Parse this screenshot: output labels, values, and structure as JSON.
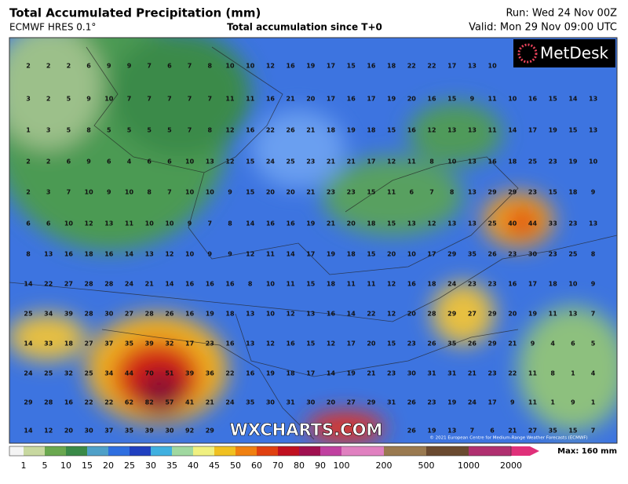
{
  "header": {
    "title": "Total Accumulated Precipitation (mm)",
    "model": "ECMWF HRES 0.1°",
    "subtitle": "Total accumulation since T+0",
    "run": "Run: Wed 24 Nov 00Z",
    "valid": "Valid: Mon 29 Nov 09:00 UTC"
  },
  "logo": "MetDesk",
  "watermark": "WXCHARTS.COM",
  "copyright": "© 2021 European Centre for Medium-Range Weather Forecasts (ECMWF)",
  "grid": [
    [
      2,
      2,
      2,
      6,
      9,
      9,
      7,
      6,
      7,
      8,
      10,
      10,
      12,
      16,
      19,
      17,
      15,
      16,
      18,
      22,
      22,
      17,
      13,
      10,
      null,
      null,
      null,
      null,
      null
    ],
    [
      3,
      2,
      5,
      9,
      10,
      7,
      7,
      7,
      7,
      7,
      11,
      11,
      16,
      21,
      20,
      17,
      16,
      17,
      19,
      20,
      16,
      15,
      9,
      11,
      10,
      16,
      15,
      14,
      13
    ],
    [
      1,
      3,
      5,
      8,
      5,
      5,
      5,
      5,
      7,
      8,
      12,
      16,
      22,
      26,
      21,
      18,
      19,
      18,
      15,
      16,
      12,
      13,
      13,
      11,
      14,
      17,
      19,
      15,
      13
    ],
    [
      2,
      2,
      6,
      9,
      6,
      4,
      6,
      6,
      10,
      13,
      12,
      15,
      24,
      25,
      23,
      21,
      21,
      17,
      12,
      11,
      8,
      10,
      13,
      16,
      18,
      25,
      23,
      19,
      10
    ],
    [
      2,
      3,
      7,
      10,
      9,
      10,
      8,
      7,
      10,
      10,
      9,
      15,
      20,
      20,
      21,
      23,
      23,
      15,
      11,
      6,
      7,
      8,
      13,
      29,
      29,
      23,
      15,
      18,
      9
    ],
    [
      6,
      6,
      10,
      12,
      13,
      11,
      10,
      10,
      9,
      7,
      8,
      14,
      16,
      16,
      19,
      21,
      20,
      18,
      15,
      13,
      12,
      13,
      13,
      25,
      40,
      44,
      33,
      23,
      13
    ],
    [
      8,
      13,
      16,
      18,
      16,
      14,
      13,
      12,
      10,
      9,
      9,
      12,
      11,
      14,
      17,
      19,
      18,
      15,
      20,
      10,
      17,
      29,
      35,
      26,
      23,
      30,
      23,
      25,
      8
    ],
    [
      14,
      22,
      27,
      28,
      28,
      24,
      21,
      14,
      16,
      16,
      16,
      8,
      10,
      11,
      15,
      18,
      11,
      11,
      12,
      16,
      18,
      24,
      23,
      23,
      16,
      17,
      18,
      10,
      9
    ],
    [
      25,
      34,
      39,
      28,
      30,
      27,
      28,
      26,
      16,
      19,
      18,
      13,
      10,
      12,
      13,
      16,
      14,
      22,
      12,
      20,
      28,
      29,
      27,
      29,
      20,
      19,
      11,
      13,
      7
    ],
    [
      14,
      33,
      18,
      27,
      37,
      35,
      39,
      32,
      17,
      23,
      16,
      13,
      12,
      16,
      15,
      12,
      17,
      20,
      15,
      23,
      26,
      35,
      26,
      29,
      21,
      9,
      4,
      6,
      5
    ],
    [
      24,
      25,
      32,
      25,
      34,
      44,
      70,
      51,
      39,
      36,
      22,
      16,
      19,
      18,
      17,
      14,
      19,
      21,
      23,
      30,
      31,
      31,
      21,
      23,
      22,
      11,
      8,
      1,
      4
    ],
    [
      29,
      28,
      16,
      22,
      22,
      62,
      82,
      57,
      41,
      21,
      24,
      35,
      30,
      31,
      30,
      20,
      27,
      29,
      31,
      26,
      23,
      19,
      24,
      17,
      9,
      11,
      1,
      9,
      1
    ],
    [
      14,
      12,
      20,
      30,
      37,
      35,
      39,
      30,
      92,
      29,
      null,
      null,
      null,
      null,
      null,
      null,
      null,
      null,
      null,
      26,
      19,
      13,
      7,
      6,
      21,
      27,
      35,
      15,
      7
    ]
  ],
  "legend": {
    "ticks": [
      "1",
      "5",
      "10",
      "15",
      "20",
      "25",
      "30",
      "35",
      "40",
      "45",
      "50",
      "60",
      "70",
      "80",
      "90",
      "100",
      "200",
      "500",
      "1000",
      "2000"
    ],
    "max": "Max: 160 mm"
  }
}
